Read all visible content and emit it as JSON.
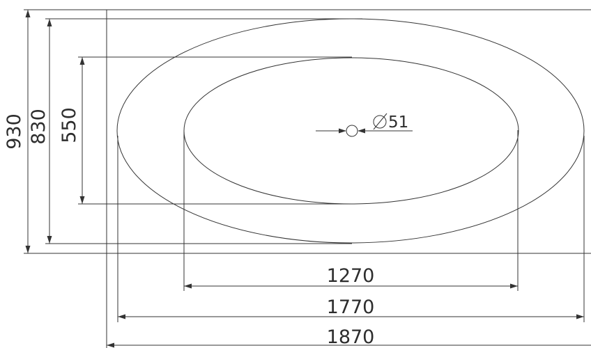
{
  "drawing": {
    "dimensions": {
      "outer_length": "1870",
      "rim_length": "1770",
      "basin_length": "1270",
      "outer_width": "930",
      "rim_width": "830",
      "basin_width": "550",
      "drain": "51",
      "drain_symbol": "∅"
    },
    "colors": {
      "line": "#333333",
      "text": "#2d2d2d",
      "background": "#ffffff"
    }
  }
}
